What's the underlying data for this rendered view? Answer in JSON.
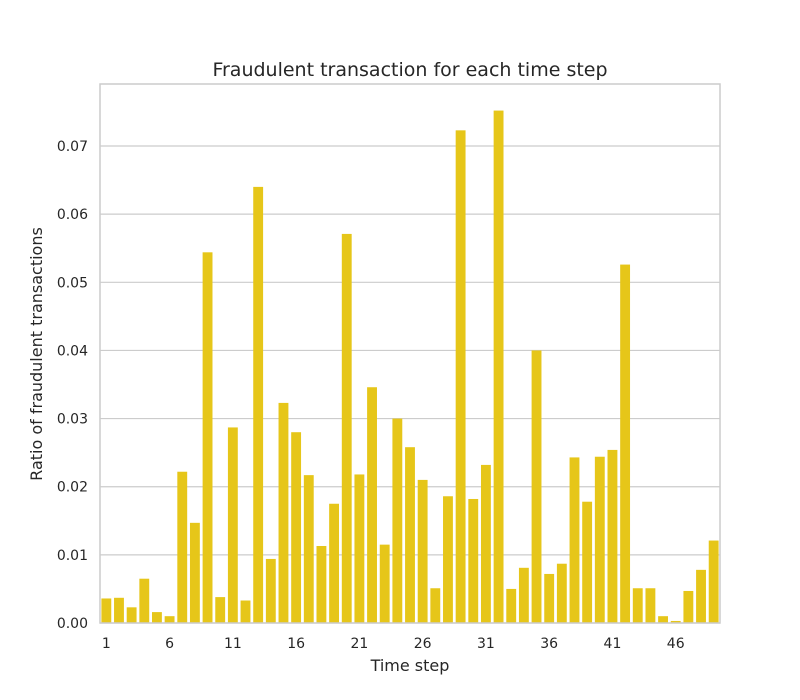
{
  "chart_data": {
    "type": "bar",
    "title": "Fraudulent transaction for each time step",
    "xlabel": "Time step",
    "ylabel": "Ratio of fraudulent transactions",
    "bar_color": "#e6c619",
    "grid": "y",
    "ylim": [
      0,
      0.0791
    ],
    "yticks": [
      0.0,
      0.01,
      0.02,
      0.03,
      0.04,
      0.05,
      0.06,
      0.07
    ],
    "ytick_labels": [
      "0.00",
      "0.01",
      "0.02",
      "0.03",
      "0.04",
      "0.05",
      "0.06",
      "0.07"
    ],
    "xtick_labels": [
      "1",
      "6",
      "11",
      "16",
      "21",
      "26",
      "31",
      "36",
      "41",
      "46"
    ],
    "categories": [
      1,
      2,
      3,
      4,
      5,
      6,
      7,
      8,
      9,
      10,
      11,
      12,
      13,
      14,
      15,
      16,
      17,
      18,
      19,
      20,
      21,
      22,
      23,
      24,
      25,
      26,
      27,
      28,
      29,
      30,
      31,
      32,
      33,
      34,
      35,
      36,
      37,
      38,
      39,
      40,
      41,
      42,
      43,
      44,
      45,
      46,
      47,
      48,
      49
    ],
    "values": [
      0.0036,
      0.0037,
      0.0023,
      0.0065,
      0.0016,
      0.001,
      0.0222,
      0.0147,
      0.0544,
      0.0038,
      0.0287,
      0.0033,
      0.064,
      0.0094,
      0.0323,
      0.028,
      0.0217,
      0.0113,
      0.0175,
      0.0571,
      0.0218,
      0.0346,
      0.0115,
      0.03,
      0.0258,
      0.021,
      0.0051,
      0.0186,
      0.0723,
      0.0182,
      0.0232,
      0.0752,
      0.005,
      0.0081,
      0.04,
      0.0072,
      0.0087,
      0.0243,
      0.0178,
      0.0244,
      0.0254,
      0.0526,
      0.0051,
      0.0051,
      0.001,
      0.0003,
      0.0047,
      0.0078,
      0.0121
    ]
  }
}
